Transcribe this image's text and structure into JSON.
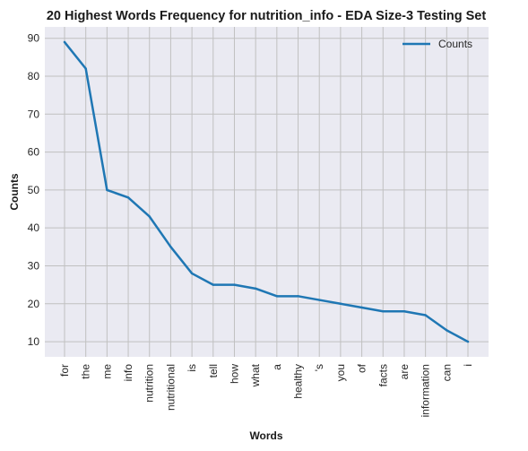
{
  "chart_data": {
    "type": "line",
    "title": "20 Highest Words Frequency for nutrition_info - EDA Size-3 Testing Set",
    "xlabel": "Words",
    "ylabel": "Counts",
    "categories": [
      "for",
      "the",
      "me",
      "info",
      "nutrition",
      "nutritional",
      "is",
      "tell",
      "how",
      "what",
      "a",
      "healthy",
      "'s",
      "you",
      "of",
      "facts",
      "are",
      "information",
      "can",
      "i"
    ],
    "series": [
      {
        "name": "Counts",
        "values": [
          89,
          82,
          50,
          48,
          43,
          35,
          28,
          25,
          25,
          24,
          22,
          22,
          21,
          20,
          19,
          18,
          18,
          17,
          13,
          10
        ]
      }
    ],
    "ylim": [
      6,
      93
    ],
    "yticks": [
      10,
      20,
      30,
      40,
      50,
      60,
      70,
      80,
      90
    ],
    "grid": true,
    "legend_position": "top-right",
    "colors": {
      "line": "#1f77b4",
      "plot_background": "#eaeaf2",
      "grid": "#c0c0c0"
    }
  }
}
